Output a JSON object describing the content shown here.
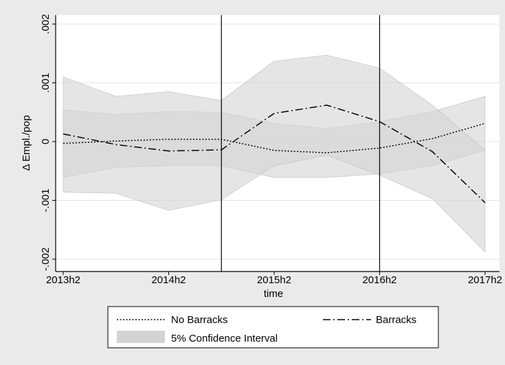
{
  "chart_data": {
    "type": "line",
    "title": "",
    "xlabel": "time",
    "ylabel": "Δ Empl./pop",
    "x_ticks": [
      "2013h2",
      "2014h2",
      "2015h2",
      "2016h2",
      "2017h2"
    ],
    "x_positions": [
      0,
      0.5,
      1,
      1.5,
      2,
      2.5,
      3,
      3.5,
      4
    ],
    "ylim": [
      -0.0021,
      0.0021
    ],
    "y_ticks": [
      -0.002,
      -0.001,
      0,
      0.001,
      0.002
    ],
    "y_tick_labels": [
      "-.002",
      "-.001",
      "0",
      ".001",
      ".002"
    ],
    "vertical_lines_x": [
      1.5,
      3
    ],
    "grid": true,
    "legend_placement": "bottom",
    "series": [
      {
        "name": "No Barracks",
        "style": "dotted",
        "values": [
          -3e-05,
          1e-05,
          4e-05,
          4e-05,
          -0.00015,
          -0.00019,
          -0.00011,
          5e-05,
          0.00031
        ],
        "ci_lower": [
          -0.00061,
          -0.00044,
          -0.00041,
          -0.00041,
          -0.00061,
          -0.00061,
          -0.00055,
          -0.00041,
          -0.00015
        ],
        "ci_upper": [
          0.00054,
          0.00046,
          0.00051,
          0.0005,
          0.00031,
          0.00022,
          0.00034,
          0.00051,
          0.00077
        ]
      },
      {
        "name": "Barracks",
        "style": "dash-dot",
        "values": [
          0.00013,
          -5e-05,
          -0.00016,
          -0.00014,
          0.00048,
          0.00062,
          0.00034,
          -0.00017,
          -0.00104
        ],
        "ci_lower": [
          -0.00086,
          -0.00088,
          -0.00117,
          -0.00099,
          -0.00041,
          -0.00023,
          -0.00057,
          -0.00097,
          -0.00188
        ],
        "ci_upper": [
          0.0011,
          0.00077,
          0.00085,
          0.0007,
          0.00137,
          0.00147,
          0.00125,
          0.00062,
          -0.00015
        ]
      }
    ],
    "legend": {
      "no_barracks": "No Barracks",
      "barracks": "Barracks",
      "ci": "5% Confidence Interval"
    },
    "colors": {
      "background": "#eaeaea",
      "plot_background": "#ffffff",
      "ci_fill": "#d3d3d3",
      "line": "#000000",
      "grid": "#e4e4e4"
    }
  }
}
